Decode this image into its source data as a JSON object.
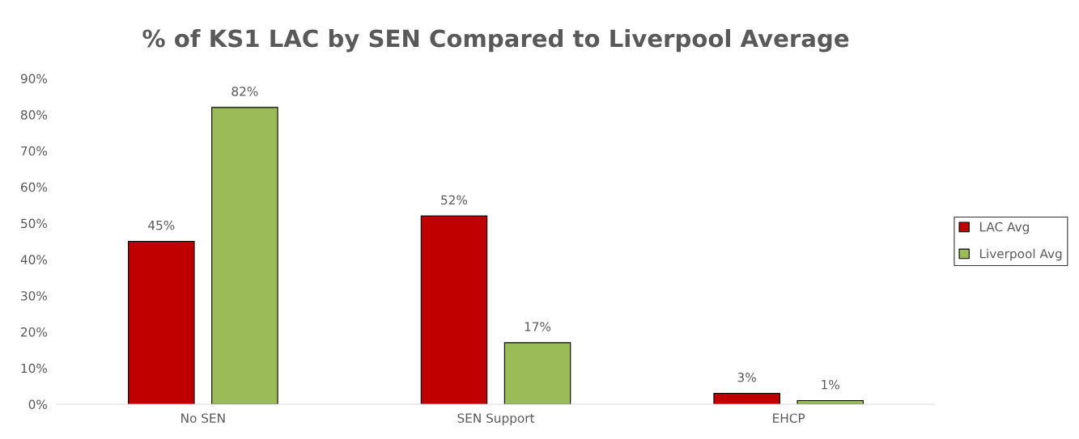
{
  "chart_data": {
    "type": "bar",
    "title": "% of KS1 LAC by SEN Compared to Liverpool Average",
    "categories": [
      "No SEN",
      "SEN Support",
      "EHCP"
    ],
    "series": [
      {
        "name": "LAC Avg",
        "color": "#c00000",
        "values": [
          45,
          52,
          3
        ],
        "value_labels": [
          "45%",
          "52%",
          "3%"
        ]
      },
      {
        "name": "Liverpool Avg",
        "color": "#9bbb59",
        "values": [
          82,
          17,
          1
        ],
        "value_labels": [
          "82%",
          "17%",
          "1%"
        ]
      }
    ],
    "ylim": [
      0,
      90
    ],
    "yticks": [
      {
        "value": 0,
        "label": "0%"
      },
      {
        "value": 10,
        "label": "10%"
      },
      {
        "value": 20,
        "label": "20%"
      },
      {
        "value": 30,
        "label": "30%"
      },
      {
        "value": 40,
        "label": "40%"
      },
      {
        "value": 50,
        "label": "50%"
      },
      {
        "value": 60,
        "label": "60%"
      },
      {
        "value": 70,
        "label": "70%"
      },
      {
        "value": 80,
        "label": "80%"
      },
      {
        "value": 90,
        "label": "90%"
      }
    ],
    "grid": false,
    "legend": "right"
  }
}
